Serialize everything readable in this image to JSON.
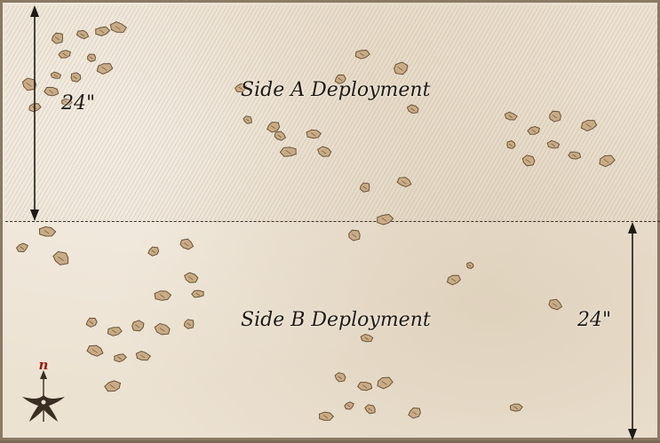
{
  "zones": {
    "side_a": {
      "label": "Side A Deployment"
    },
    "side_b": {
      "label": "Side B Deployment"
    }
  },
  "measurements": {
    "side_a_depth": "24\"",
    "side_b_depth": "24\""
  },
  "compass": {
    "north_label": "n"
  },
  "colors": {
    "parchment": "#ece2d2",
    "rock_fill": "#c9ac86",
    "rock_stroke": "#6b5438",
    "ink": "#1e1a16",
    "north_red": "#9b1c12"
  }
}
